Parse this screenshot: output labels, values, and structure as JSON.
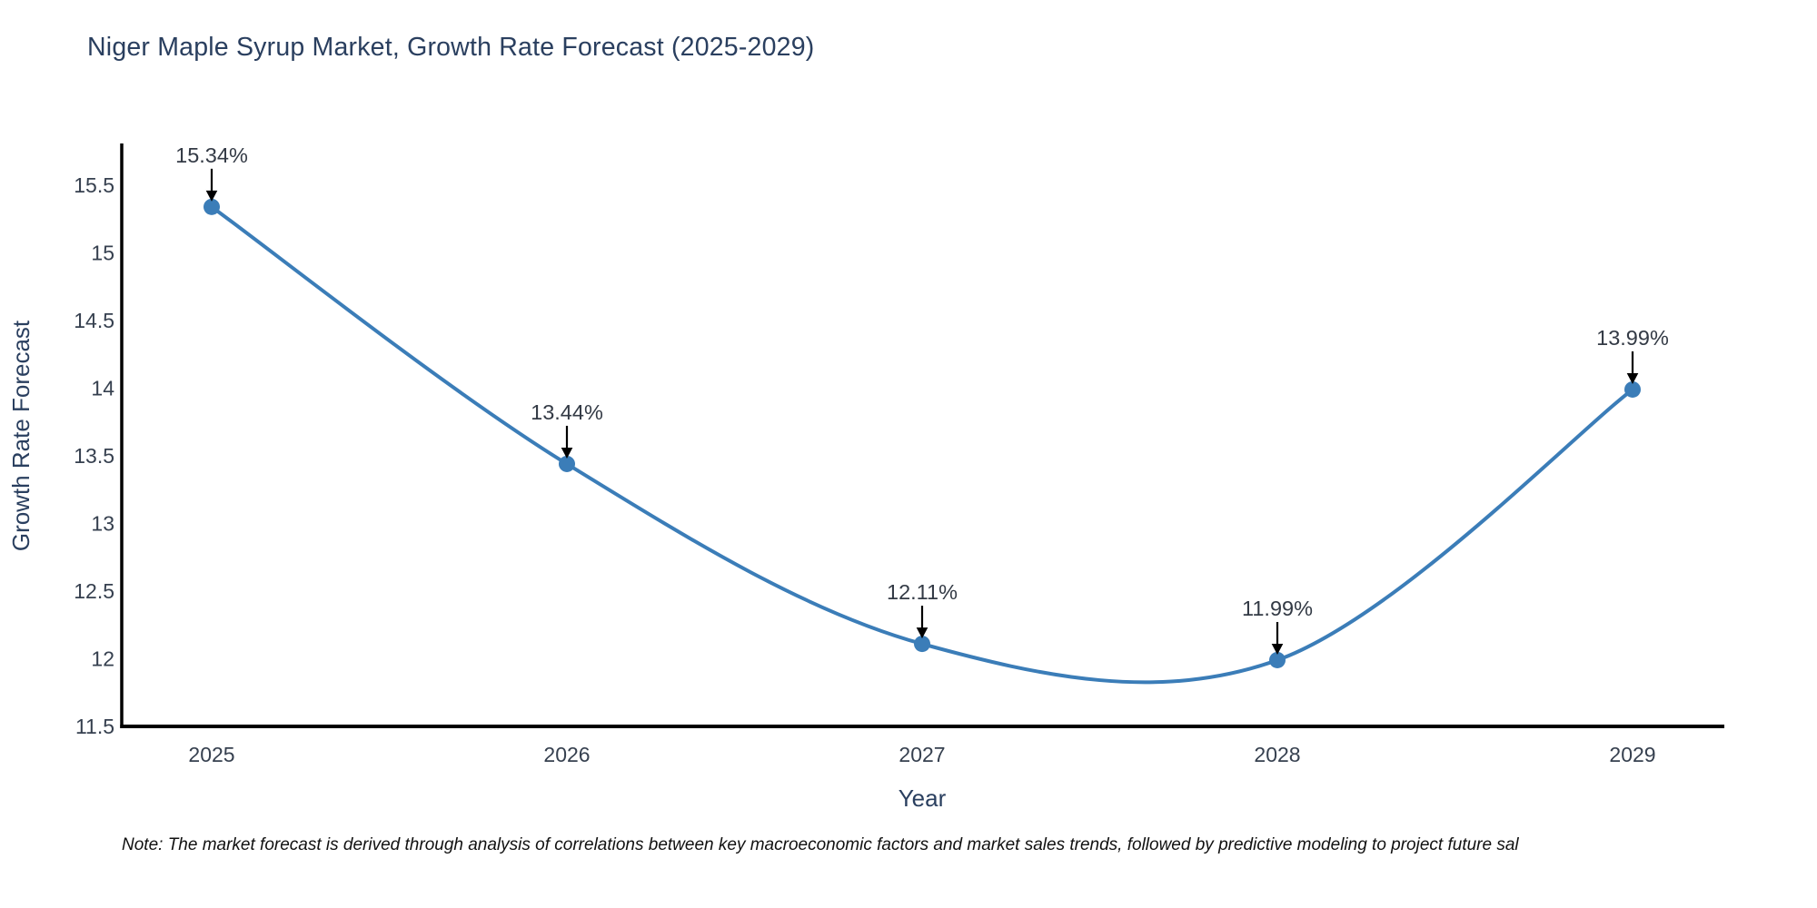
{
  "page": {
    "background": "#ffffff"
  },
  "chart_data": {
    "type": "line",
    "title": "Niger Maple Syrup Market, Growth Rate Forecast (2025-2029)",
    "xlabel": "Year",
    "ylabel": "Growth Rate Forecast",
    "x": [
      2025,
      2026,
      2027,
      2028,
      2029
    ],
    "series": [
      {
        "name": "Growth Rate Forecast",
        "values": [
          15.34,
          13.44,
          12.11,
          11.99,
          13.99
        ]
      }
    ],
    "point_labels": [
      "15.34%",
      "13.44%",
      "12.11%",
      "11.99%",
      "13.99%"
    ],
    "xtick_labels": [
      "2025",
      "2026",
      "2027",
      "2028",
      "2029"
    ],
    "yticks": [
      11.5,
      12,
      12.5,
      13,
      13.5,
      14,
      14.5,
      15,
      15.5
    ],
    "ytick_labels": [
      "11.5",
      "12",
      "12.5",
      "13",
      "13.5",
      "14",
      "14.5",
      "15",
      "15.5"
    ],
    "xlim": [
      2024.75,
      2029.25
    ],
    "ylim": [
      11.5,
      15.8
    ],
    "line_shape": "spline",
    "grid": false,
    "legend": false,
    "annotation_style": "down-arrow",
    "colors": {
      "line": "#3b7db8",
      "marker": "#3b7db8",
      "axis": "#000000",
      "annotation_arrow": "#000000",
      "annotation_text": "#333a45",
      "tick_text": "#36404f",
      "title_text": "#2a3f5f",
      "axis_label_text": "#2a3f5f",
      "note_text": "#111111"
    },
    "note": "Note: The market forecast is derived through analysis of correlations between key macroeconomic factors and market sales trends, followed by predictive modeling to project future sal"
  }
}
